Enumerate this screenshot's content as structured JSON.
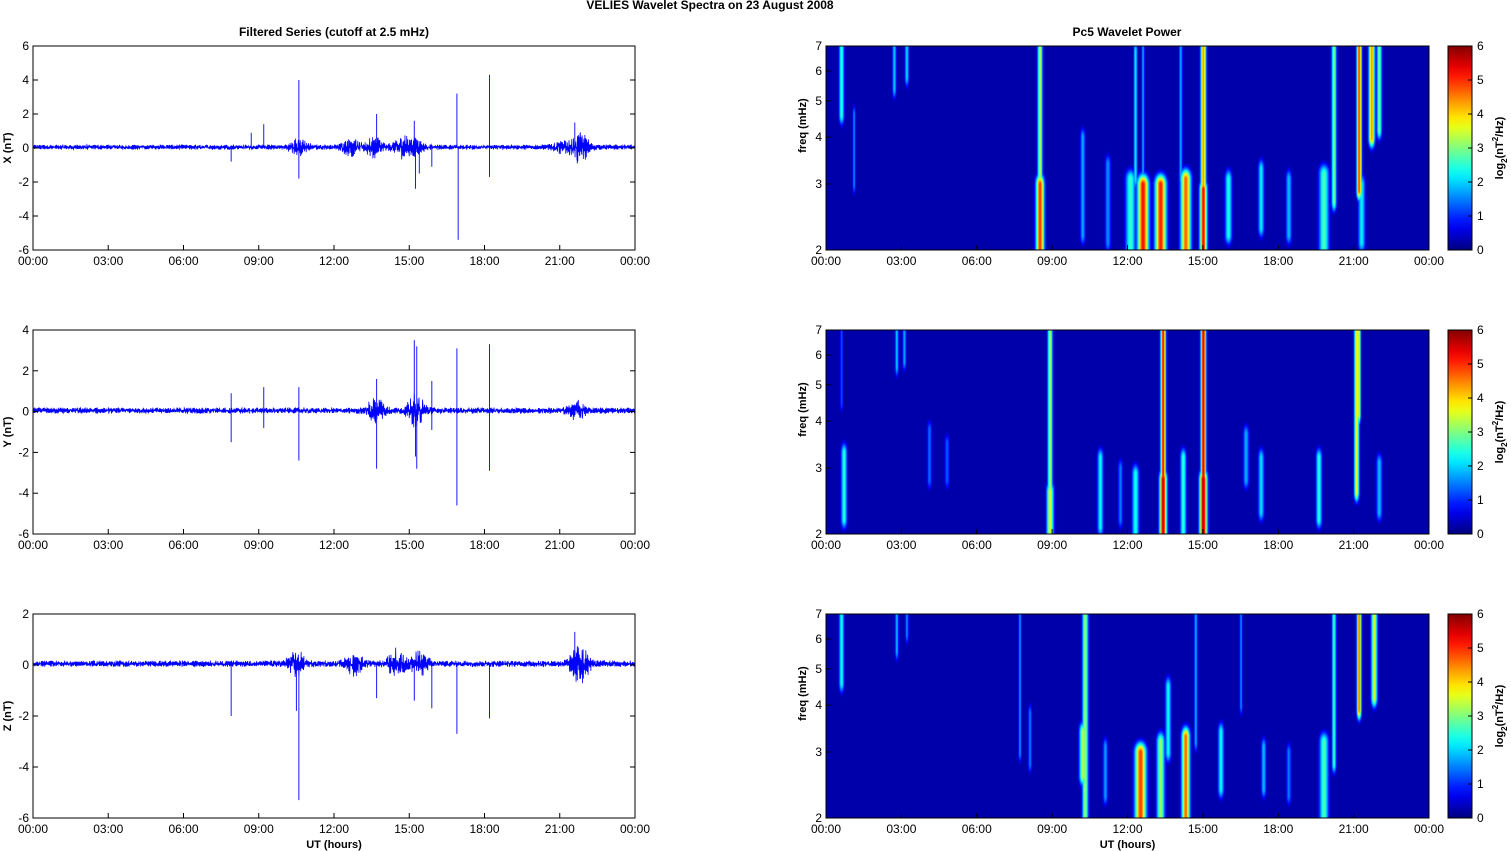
{
  "figure": {
    "suptitle": "VELIES Wavelet Spectra on 23 August    2008",
    "left_title": "Filtered Series (cutoff at 2.5 mHz)",
    "right_title": "Pc5 Wavelet Power",
    "xlabel": "UT (hours)"
  },
  "chart_data": [
    {
      "type": "line",
      "title": "Filtered Series (cutoff at 2.5 mHz)",
      "ylabel": "X (nT)",
      "xlabel": "",
      "xlim": [
        0,
        24
      ],
      "ylim": [
        -6,
        6
      ],
      "x_tick_labels": [
        "00:00",
        "03:00",
        "06:00",
        "09:00",
        "12:00",
        "15:00",
        "18:00",
        "21:00",
        "00:00"
      ],
      "y_ticks": [
        -6,
        -4,
        -2,
        0,
        2,
        4,
        6
      ],
      "series_color": "#0000ff",
      "baseline_noise_nT": 0.12,
      "spikes": [
        {
          "t": 7.9,
          "v": -0.8
        },
        {
          "t": 8.7,
          "v": 0.9
        },
        {
          "t": 9.2,
          "v": 1.4
        },
        {
          "t": 10.6,
          "v": 4.0
        },
        {
          "t": 10.6,
          "v": -1.8
        },
        {
          "t": 13.7,
          "v": 2.0
        },
        {
          "t": 15.2,
          "v": 1.6
        },
        {
          "t": 15.25,
          "v": -2.4
        },
        {
          "t": 15.4,
          "v": -1.5
        },
        {
          "t": 15.9,
          "v": -1.1
        },
        {
          "t": 16.9,
          "v": 3.2
        },
        {
          "t": 16.95,
          "v": -5.4
        },
        {
          "t": 18.2,
          "v": 4.3
        },
        {
          "t": 18.2,
          "v": -1.7
        },
        {
          "t": 21.6,
          "v": 1.5
        },
        {
          "t": 21.7,
          "v": -0.9
        }
      ],
      "bursts": [
        {
          "t": 10.6,
          "amp": 0.35
        },
        {
          "t": 12.7,
          "amp": 0.4
        },
        {
          "t": 13.6,
          "amp": 0.5
        },
        {
          "t": 14.7,
          "amp": 0.4
        },
        {
          "t": 15.2,
          "amp": 0.35
        },
        {
          "t": 21.0,
          "amp": 0.25
        },
        {
          "t": 21.8,
          "amp": 0.7
        }
      ]
    },
    {
      "type": "line",
      "title": "",
      "ylabel": "Y (nT)",
      "xlabel": "",
      "xlim": [
        0,
        24
      ],
      "ylim": [
        -6,
        4
      ],
      "x_tick_labels": [
        "00:00",
        "03:00",
        "06:00",
        "09:00",
        "12:00",
        "15:00",
        "18:00",
        "21:00",
        "00:00"
      ],
      "y_ticks": [
        -6,
        -4,
        -2,
        0,
        2,
        4
      ],
      "series_color": "#0000ff",
      "baseline_noise_nT": 0.12,
      "spikes": [
        {
          "t": 7.9,
          "v": 0.9
        },
        {
          "t": 7.9,
          "v": -1.5
        },
        {
          "t": 9.2,
          "v": 1.2
        },
        {
          "t": 9.2,
          "v": -0.8
        },
        {
          "t": 10.6,
          "v": 1.2
        },
        {
          "t": 10.6,
          "v": -2.4
        },
        {
          "t": 13.7,
          "v": 1.6
        },
        {
          "t": 13.7,
          "v": -2.8
        },
        {
          "t": 15.2,
          "v": 3.5
        },
        {
          "t": 15.3,
          "v": 3.2
        },
        {
          "t": 15.25,
          "v": -2.2
        },
        {
          "t": 15.3,
          "v": -2.8
        },
        {
          "t": 15.9,
          "v": 1.5
        },
        {
          "t": 15.9,
          "v": -0.9
        },
        {
          "t": 16.9,
          "v": 3.1
        },
        {
          "t": 16.9,
          "v": -4.6
        },
        {
          "t": 18.2,
          "v": 3.3
        },
        {
          "t": 18.2,
          "v": -2.9
        },
        {
          "t": 21.7,
          "v": 0.5
        }
      ],
      "bursts": [
        {
          "t": 13.7,
          "amp": 0.5
        },
        {
          "t": 15.3,
          "amp": 0.6
        },
        {
          "t": 21.7,
          "amp": 0.3
        }
      ]
    },
    {
      "type": "line",
      "title": "",
      "ylabel": "Z (nT)",
      "xlabel": "UT (hours)",
      "xlim": [
        0,
        24
      ],
      "ylim": [
        -6,
        2
      ],
      "x_tick_labels": [
        "00:00",
        "03:00",
        "06:00",
        "09:00",
        "12:00",
        "15:00",
        "18:00",
        "21:00",
        "00:00"
      ],
      "y_ticks": [
        -6,
        -4,
        -2,
        0,
        2
      ],
      "series_color": "#0000ff",
      "baseline_noise_nT": 0.1,
      "spikes": [
        {
          "t": 7.9,
          "v": -2.0
        },
        {
          "t": 10.5,
          "v": -1.8
        },
        {
          "t": 10.6,
          "v": -5.3
        },
        {
          "t": 13.7,
          "v": -1.3
        },
        {
          "t": 15.2,
          "v": -1.4
        },
        {
          "t": 15.9,
          "v": -1.7
        },
        {
          "t": 16.9,
          "v": -2.7
        },
        {
          "t": 18.2,
          "v": -2.1
        },
        {
          "t": 21.6,
          "v": 1.3
        },
        {
          "t": 21.7,
          "v": -0.6
        }
      ],
      "bursts": [
        {
          "t": 10.5,
          "amp": 0.35
        },
        {
          "t": 12.8,
          "amp": 0.3
        },
        {
          "t": 14.5,
          "amp": 0.4
        },
        {
          "t": 15.4,
          "amp": 0.35
        },
        {
          "t": 21.8,
          "amp": 0.6
        }
      ]
    },
    {
      "type": "heatmap",
      "title": "Pc5 Wavelet Power",
      "ylabel": "freq (mHz)",
      "xlabel": "",
      "xlim": [
        0,
        24
      ],
      "ylim": [
        2,
        7
      ],
      "y_scale": "log",
      "y_ticks": [
        2,
        3,
        4,
        5,
        6,
        7
      ],
      "x_tick_labels": [
        "00:00",
        "03:00",
        "06:00",
        "09:00",
        "12:00",
        "15:00",
        "18:00",
        "21:00",
        "00:00"
      ],
      "colorbar": {
        "label_base": "log",
        "label_sub": "2",
        "label_paren_open": "(nT",
        "label_sup": "2",
        "label_rest": "/Hz)",
        "range": [
          0,
          6
        ],
        "ticks": [
          0,
          1,
          2,
          3,
          4,
          5,
          6
        ],
        "colormap": "jet"
      },
      "features": [
        {
          "t": 0.6,
          "f0": 4.6,
          "f1": 7.0,
          "p": 2.6,
          "w": 0.1
        },
        {
          "t": 1.1,
          "f0": 3.0,
          "f1": 4.6,
          "p": 1.6,
          "w": 0.06
        },
        {
          "t": 2.7,
          "f0": 5.4,
          "f1": 7.0,
          "p": 2.0,
          "w": 0.08
        },
        {
          "t": 3.2,
          "f0": 5.8,
          "f1": 7.0,
          "p": 2.1,
          "w": 0.08
        },
        {
          "t": 8.5,
          "f0": 2.0,
          "f1": 7.0,
          "p": 3.4,
          "w": 0.1
        },
        {
          "t": 8.5,
          "f0": 2.0,
          "f1": 3.0,
          "p": 5.0,
          "w": 0.16
        },
        {
          "t": 10.2,
          "f0": 2.2,
          "f1": 4.0,
          "p": 1.8,
          "w": 0.1
        },
        {
          "t": 11.2,
          "f0": 2.1,
          "f1": 3.4,
          "p": 1.6,
          "w": 0.12
        },
        {
          "t": 12.1,
          "f0": 2.0,
          "f1": 3.1,
          "p": 2.6,
          "w": 0.2
        },
        {
          "t": 12.6,
          "f0": 2.0,
          "f1": 3.0,
          "p": 5.2,
          "w": 0.22
        },
        {
          "t": 13.3,
          "f0": 2.0,
          "f1": 3.0,
          "p": 5.1,
          "w": 0.22
        },
        {
          "t": 12.3,
          "f0": 3.1,
          "f1": 6.8,
          "p": 2.2,
          "w": 0.08
        },
        {
          "t": 12.6,
          "f0": 3.0,
          "f1": 7.0,
          "p": 1.8,
          "w": 0.06
        },
        {
          "t": 14.3,
          "f0": 2.0,
          "f1": 3.1,
          "p": 4.7,
          "w": 0.2
        },
        {
          "t": 14.1,
          "f0": 3.1,
          "f1": 7.0,
          "p": 1.8,
          "w": 0.07
        },
        {
          "t": 15.0,
          "f0": 2.0,
          "f1": 7.0,
          "p": 4.4,
          "w": 0.11
        },
        {
          "t": 15.0,
          "f0": 2.0,
          "f1": 2.9,
          "p": 5.3,
          "w": 0.14
        },
        {
          "t": 16.0,
          "f0": 2.2,
          "f1": 3.1,
          "p": 2.4,
          "w": 0.14
        },
        {
          "t": 17.3,
          "f0": 2.3,
          "f1": 3.3,
          "p": 2.2,
          "w": 0.12
        },
        {
          "t": 18.4,
          "f0": 2.2,
          "f1": 3.1,
          "p": 1.9,
          "w": 0.12
        },
        {
          "t": 19.8,
          "f0": 2.0,
          "f1": 3.2,
          "p": 2.7,
          "w": 0.2
        },
        {
          "t": 20.2,
          "f0": 2.7,
          "f1": 7.0,
          "p": 3.0,
          "w": 0.1
        },
        {
          "t": 21.2,
          "f0": 2.9,
          "f1": 7.0,
          "p": 4.9,
          "w": 0.1
        },
        {
          "t": 21.7,
          "f0": 4.0,
          "f1": 7.0,
          "p": 4.4,
          "w": 0.12
        },
        {
          "t": 22.0,
          "f0": 4.2,
          "f1": 7.0,
          "p": 3.0,
          "w": 0.1
        },
        {
          "t": 21.3,
          "f0": 2.1,
          "f1": 3.0,
          "p": 2.2,
          "w": 0.14
        }
      ]
    },
    {
      "type": "heatmap",
      "title": "",
      "ylabel": "freq (mHz)",
      "xlabel": "",
      "xlim": [
        0,
        24
      ],
      "ylim": [
        2,
        7
      ],
      "y_scale": "log",
      "y_ticks": [
        2,
        3,
        4,
        5,
        6,
        7
      ],
      "x_tick_labels": [
        "00:00",
        "03:00",
        "06:00",
        "09:00",
        "12:00",
        "15:00",
        "18:00",
        "21:00",
        "00:00"
      ],
      "colorbar": {
        "label_base": "log",
        "label_sub": "2",
        "label_paren_open": "(nT",
        "label_sup": "2",
        "label_rest": "/Hz)",
        "range": [
          0,
          6
        ],
        "ticks": [
          0,
          1,
          2,
          3,
          4,
          5,
          6
        ],
        "colormap": "jet"
      },
      "features": [
        {
          "t": 0.7,
          "f0": 2.2,
          "f1": 3.3,
          "p": 2.5,
          "w": 0.12
        },
        {
          "t": 0.6,
          "f0": 4.5,
          "f1": 7.0,
          "p": 1.3,
          "w": 0.06
        },
        {
          "t": 2.8,
          "f0": 5.6,
          "f1": 7.0,
          "p": 2.0,
          "w": 0.07
        },
        {
          "t": 3.1,
          "f0": 5.8,
          "f1": 7.0,
          "p": 1.8,
          "w": 0.07
        },
        {
          "t": 4.1,
          "f0": 2.8,
          "f1": 3.8,
          "p": 1.4,
          "w": 0.1
        },
        {
          "t": 4.8,
          "f0": 2.8,
          "f1": 3.5,
          "p": 1.3,
          "w": 0.1
        },
        {
          "t": 8.9,
          "f0": 2.0,
          "f1": 7.0,
          "p": 3.3,
          "w": 0.1
        },
        {
          "t": 8.9,
          "f0": 2.0,
          "f1": 2.6,
          "p": 3.6,
          "w": 0.14
        },
        {
          "t": 10.9,
          "f0": 2.1,
          "f1": 3.2,
          "p": 2.3,
          "w": 0.12
        },
        {
          "t": 11.7,
          "f0": 2.2,
          "f1": 3.0,
          "p": 1.5,
          "w": 0.1
        },
        {
          "t": 12.3,
          "f0": 2.0,
          "f1": 2.9,
          "p": 2.4,
          "w": 0.14
        },
        {
          "t": 13.4,
          "f0": 2.0,
          "f1": 7.0,
          "p": 5.3,
          "w": 0.1
        },
        {
          "t": 13.4,
          "f0": 2.0,
          "f1": 2.8,
          "p": 5.6,
          "w": 0.14
        },
        {
          "t": 14.2,
          "f0": 2.0,
          "f1": 3.2,
          "p": 2.6,
          "w": 0.12
        },
        {
          "t": 15.0,
          "f0": 2.0,
          "f1": 7.0,
          "p": 5.6,
          "w": 0.1
        },
        {
          "t": 15.0,
          "f0": 2.0,
          "f1": 2.8,
          "p": 5.7,
          "w": 0.15
        },
        {
          "t": 16.7,
          "f0": 2.8,
          "f1": 3.7,
          "p": 1.8,
          "w": 0.12
        },
        {
          "t": 17.3,
          "f0": 2.3,
          "f1": 3.2,
          "p": 2.1,
          "w": 0.12
        },
        {
          "t": 19.6,
          "f0": 2.2,
          "f1": 3.2,
          "p": 2.5,
          "w": 0.12
        },
        {
          "t": 21.1,
          "f0": 2.6,
          "f1": 7.0,
          "p": 3.8,
          "w": 0.1
        },
        {
          "t": 21.2,
          "f0": 4.2,
          "f1": 7.0,
          "p": 4.1,
          "w": 0.06
        },
        {
          "t": 22.0,
          "f0": 2.3,
          "f1": 3.1,
          "p": 1.9,
          "w": 0.12
        }
      ]
    },
    {
      "type": "heatmap",
      "title": "",
      "ylabel": "freq (mHz)",
      "xlabel": "UT (hours)",
      "xlim": [
        0,
        24
      ],
      "ylim": [
        2,
        7
      ],
      "y_scale": "log",
      "y_ticks": [
        2,
        3,
        4,
        5,
        6,
        7
      ],
      "x_tick_labels": [
        "00:00",
        "03:00",
        "06:00",
        "09:00",
        "12:00",
        "15:00",
        "18:00",
        "21:00",
        "00:00"
      ],
      "colorbar": {
        "label_base": "log",
        "label_sub": "2",
        "label_paren_open": "(nT",
        "label_sup": "2",
        "label_rest": "/Hz)",
        "range": [
          0,
          6
        ],
        "ticks": [
          0,
          1,
          2,
          3,
          4,
          5,
          6
        ],
        "colormap": "jet"
      },
      "features": [
        {
          "t": 0.6,
          "f0": 4.6,
          "f1": 7.0,
          "p": 2.4,
          "w": 0.1
        },
        {
          "t": 2.8,
          "f0": 5.6,
          "f1": 7.0,
          "p": 1.9,
          "w": 0.07
        },
        {
          "t": 3.2,
          "f0": 6.2,
          "f1": 7.0,
          "p": 1.6,
          "w": 0.07
        },
        {
          "t": 7.7,
          "f0": 3.0,
          "f1": 7.0,
          "p": 1.7,
          "w": 0.06
        },
        {
          "t": 8.1,
          "f0": 2.8,
          "f1": 3.8,
          "p": 1.5,
          "w": 0.08
        },
        {
          "t": 10.3,
          "f0": 2.0,
          "f1": 7.0,
          "p": 3.2,
          "w": 0.12
        },
        {
          "t": 10.2,
          "f0": 2.6,
          "f1": 3.4,
          "p": 3.3,
          "w": 0.14
        },
        {
          "t": 11.1,
          "f0": 2.3,
          "f1": 3.1,
          "p": 1.7,
          "w": 0.1
        },
        {
          "t": 12.5,
          "f0": 2.0,
          "f1": 3.0,
          "p": 4.9,
          "w": 0.22
        },
        {
          "t": 13.3,
          "f0": 2.0,
          "f1": 3.2,
          "p": 3.2,
          "w": 0.16
        },
        {
          "t": 13.6,
          "f0": 3.0,
          "f1": 4.5,
          "p": 2.3,
          "w": 0.12
        },
        {
          "t": 14.3,
          "f0": 2.0,
          "f1": 3.3,
          "p": 4.7,
          "w": 0.16
        },
        {
          "t": 14.7,
          "f0": 3.2,
          "f1": 7.0,
          "p": 1.8,
          "w": 0.07
        },
        {
          "t": 15.7,
          "f0": 2.4,
          "f1": 3.4,
          "p": 2.3,
          "w": 0.12
        },
        {
          "t": 16.5,
          "f0": 4.0,
          "f1": 7.0,
          "p": 1.6,
          "w": 0.06
        },
        {
          "t": 17.4,
          "f0": 2.4,
          "f1": 3.1,
          "p": 1.9,
          "w": 0.1
        },
        {
          "t": 18.4,
          "f0": 2.3,
          "f1": 3.0,
          "p": 1.5,
          "w": 0.1
        },
        {
          "t": 19.8,
          "f0": 2.0,
          "f1": 3.2,
          "p": 2.7,
          "w": 0.18
        },
        {
          "t": 20.2,
          "f0": 2.8,
          "f1": 7.0,
          "p": 2.6,
          "w": 0.09
        },
        {
          "t": 21.2,
          "f0": 3.9,
          "f1": 7.0,
          "p": 4.6,
          "w": 0.09
        },
        {
          "t": 21.8,
          "f0": 4.2,
          "f1": 7.0,
          "p": 3.6,
          "w": 0.12
        }
      ]
    }
  ]
}
